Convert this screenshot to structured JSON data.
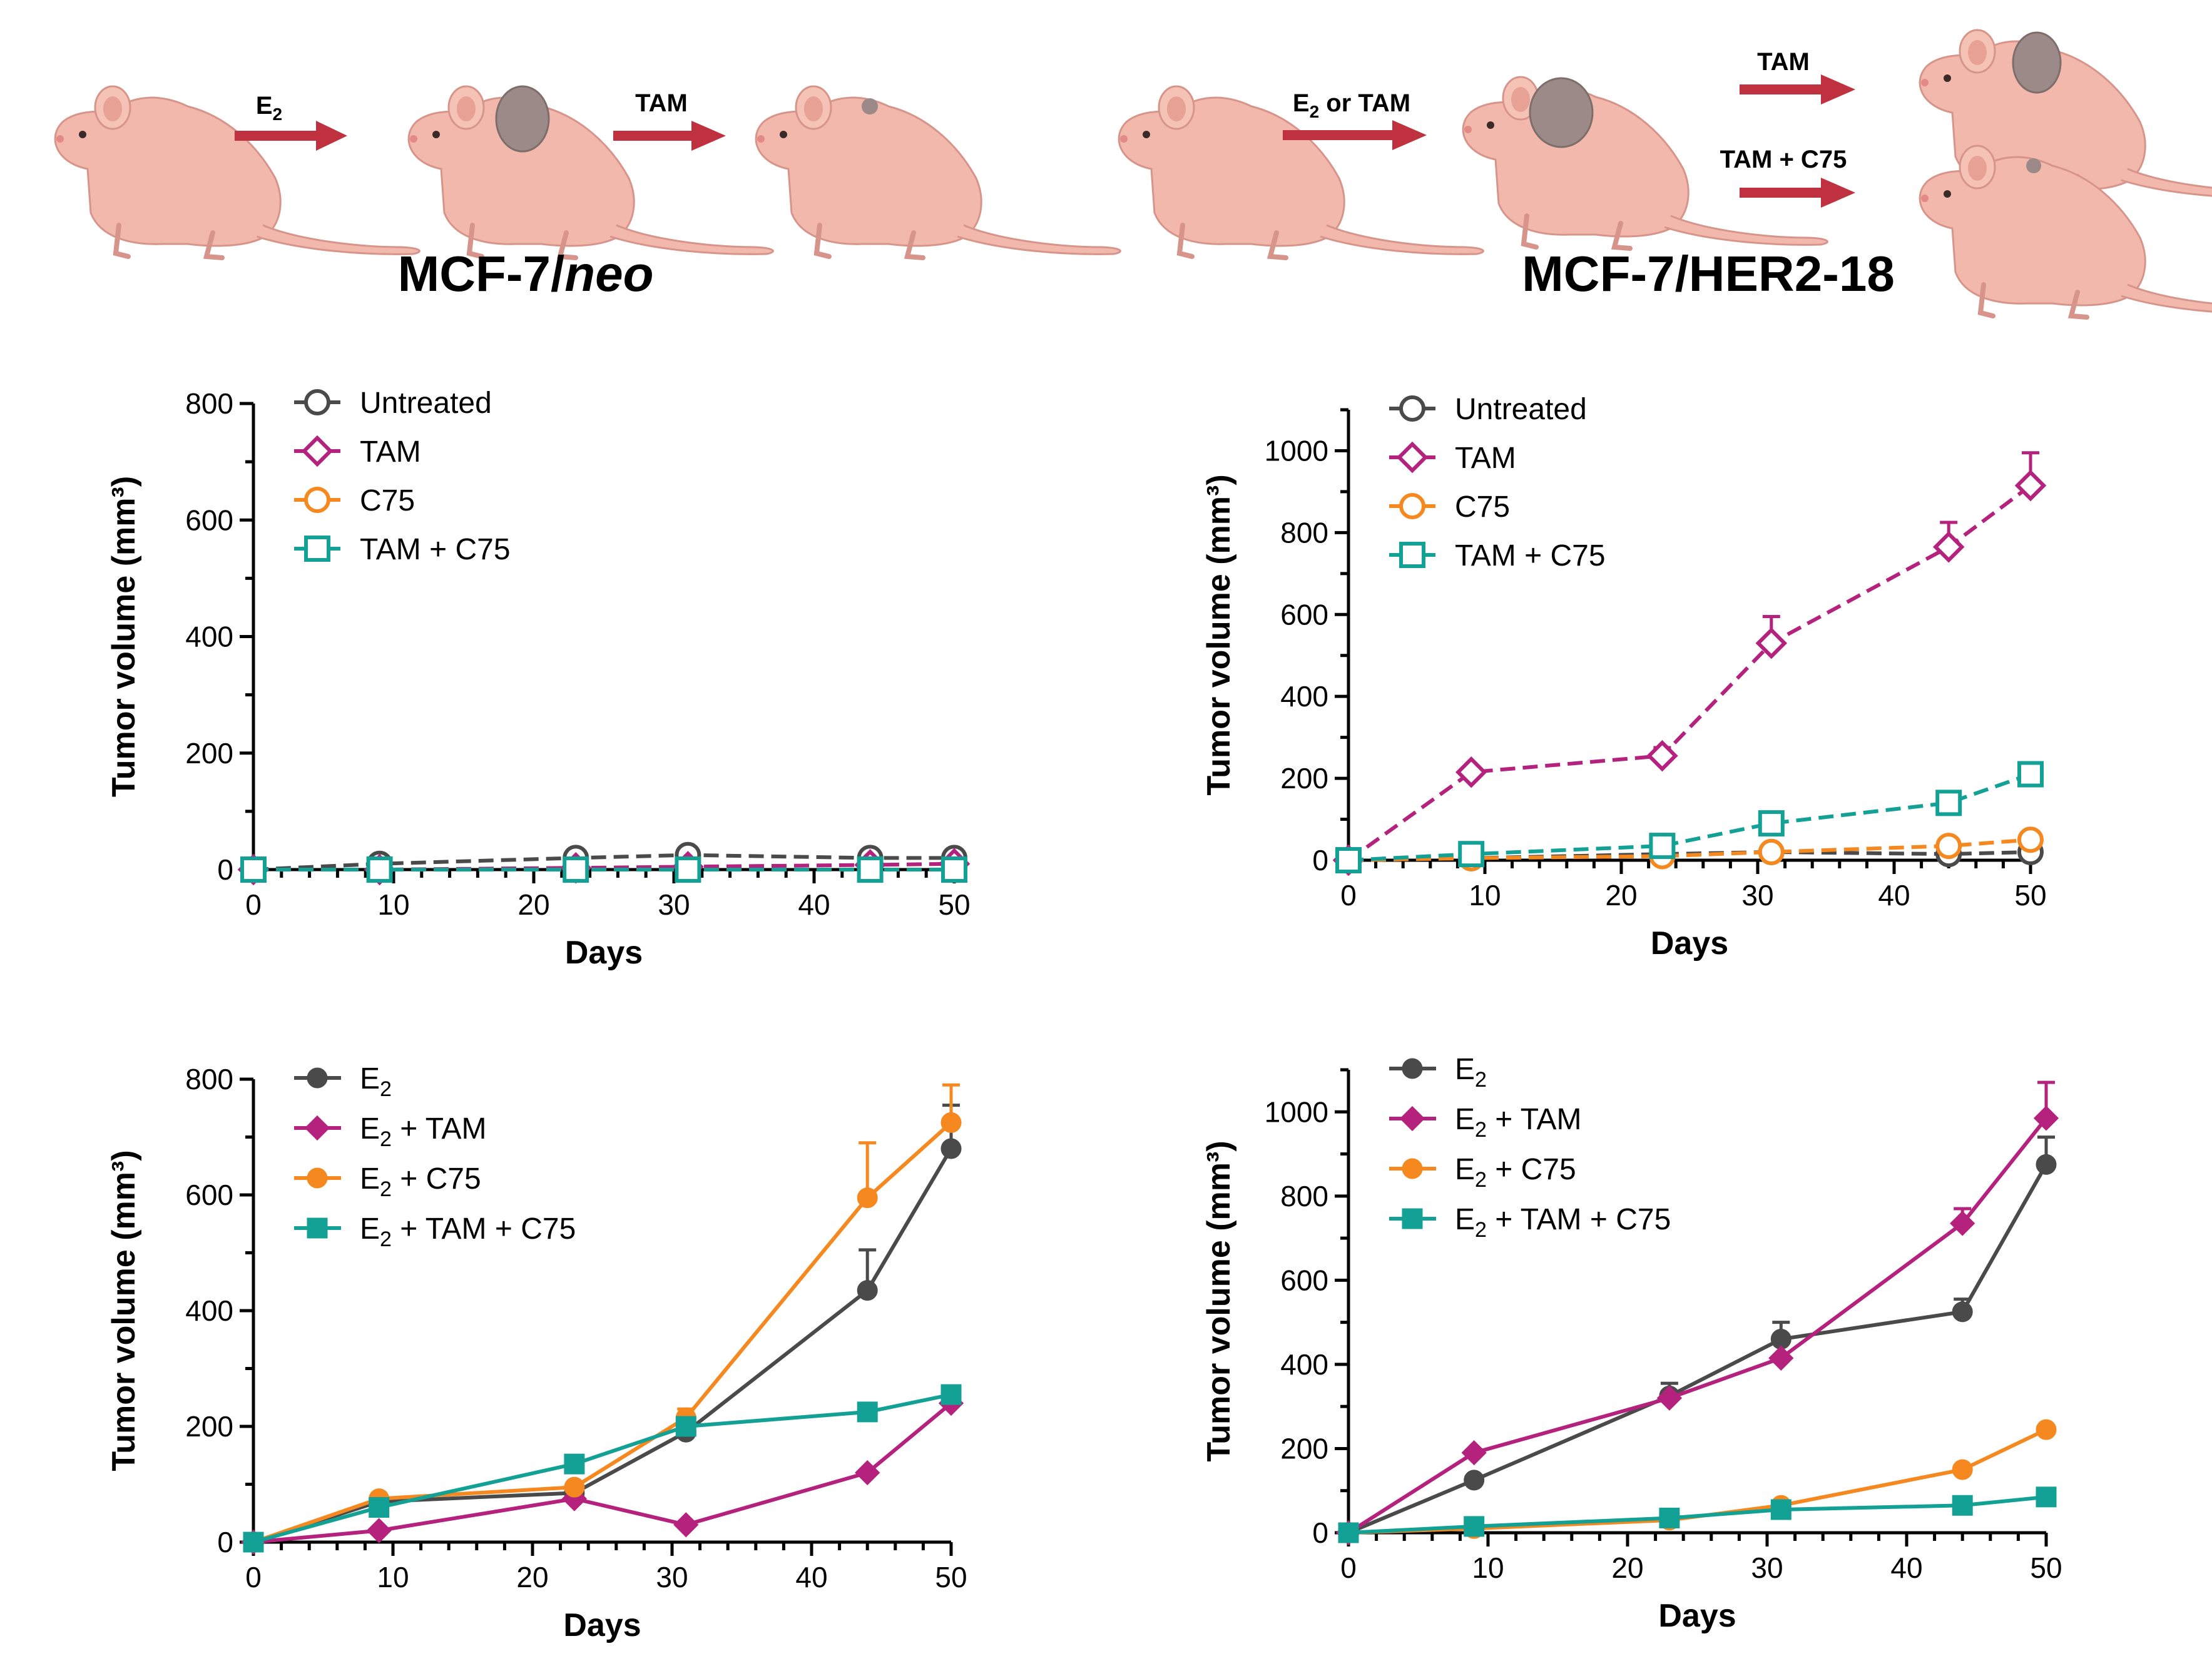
{
  "figure": {
    "left_title_main": "MCF-7/",
    "left_title_italic": "neo",
    "right_title": "MCF-7/HER2-18",
    "scheme_left": {
      "arrow1_label": "E",
      "arrow1_sub": "2",
      "arrow2_label": "TAM"
    },
    "scheme_right": {
      "arrow1_label_pre": "E",
      "arrow1_sub": "2",
      "arrow1_label_post": " or TAM",
      "arrow_top_label": "TAM",
      "arrow_bottom_label": "TAM + C75"
    }
  },
  "colors": {
    "untreated": "#4a4a4a",
    "tam": "#b5227e",
    "c75": "#f5891f",
    "tam_c75": "#14a195",
    "arrow": "#c0313f",
    "mouse": "#f2b8ac",
    "tumor": "#9b8a88"
  },
  "chart_data": [
    {
      "id": "neo_open",
      "type": "line",
      "xlabel": "Days",
      "ylabel": "Tumor volume (mm³)",
      "xlim": [
        0,
        50
      ],
      "ylim": [
        0,
        800
      ],
      "xticks": [
        "0",
        "10",
        "20",
        "30",
        "40",
        "50"
      ],
      "yticks": [
        "0",
        "200",
        "400",
        "600",
        "800"
      ],
      "x": [
        0,
        9,
        23,
        31,
        44,
        50
      ],
      "series": [
        {
          "name": "Untreated",
          "color": "#4a4a4a",
          "marker": "circle-open",
          "dash": true,
          "values": [
            0,
            10,
            20,
            25,
            20,
            20
          ],
          "err": [
            0,
            0,
            0,
            0,
            0,
            0
          ]
        },
        {
          "name": "TAM",
          "color": "#b5227e",
          "marker": "diamond-open",
          "dash": true,
          "values": [
            0,
            0,
            3,
            5,
            8,
            10
          ],
          "err": [
            0,
            0,
            0,
            0,
            0,
            0
          ]
        },
        {
          "name": "C75",
          "color": "#f5891f",
          "marker": "circle-open",
          "dash": true,
          "values": [
            0,
            0,
            0,
            0,
            0,
            0
          ],
          "err": [
            0,
            0,
            0,
            0,
            0,
            0
          ]
        },
        {
          "name": "TAM + C75",
          "color": "#14a195",
          "marker": "square-open",
          "dash": true,
          "values": [
            0,
            0,
            0,
            0,
            0,
            0
          ],
          "err": [
            0,
            0,
            0,
            0,
            0,
            0
          ]
        }
      ]
    },
    {
      "id": "her2_open",
      "type": "line",
      "xlabel": "Days",
      "ylabel": "Tumor volume (mm³)",
      "xlim": [
        0,
        50
      ],
      "ylim": [
        0,
        1100
      ],
      "xticks": [
        "0",
        "10",
        "20",
        "30",
        "40",
        "50"
      ],
      "yticks": [
        "0",
        "200",
        "400",
        "600",
        "800",
        "1000"
      ],
      "x": [
        0,
        9,
        23,
        31,
        44,
        50
      ],
      "series": [
        {
          "name": "Untreated",
          "color": "#4a4a4a",
          "marker": "circle-open",
          "dash": true,
          "values": [
            0,
            5,
            15,
            20,
            15,
            20
          ],
          "err": [
            0,
            0,
            0,
            0,
            0,
            0
          ]
        },
        {
          "name": "TAM",
          "color": "#b5227e",
          "marker": "diamond-open",
          "dash": true,
          "values": [
            0,
            215,
            255,
            530,
            765,
            915
          ],
          "err": [
            0,
            0,
            20,
            65,
            60,
            80
          ]
        },
        {
          "name": "C75",
          "color": "#f5891f",
          "marker": "circle-open",
          "dash": true,
          "values": [
            0,
            5,
            10,
            20,
            35,
            50
          ],
          "err": [
            0,
            0,
            0,
            0,
            0,
            0
          ]
        },
        {
          "name": "TAM + C75",
          "color": "#14a195",
          "marker": "square-open",
          "dash": true,
          "values": [
            0,
            15,
            35,
            90,
            140,
            210
          ],
          "err": [
            0,
            0,
            0,
            0,
            0,
            0
          ]
        }
      ]
    },
    {
      "id": "neo_filled",
      "type": "line",
      "xlabel": "Days",
      "ylabel": "Tumor volume (mm³)",
      "xlim": [
        0,
        50
      ],
      "ylim": [
        0,
        800
      ],
      "xticks": [
        "0",
        "10",
        "20",
        "30",
        "40",
        "50"
      ],
      "yticks": [
        "0",
        "200",
        "400",
        "600",
        "800"
      ],
      "x": [
        0,
        9,
        23,
        31,
        44,
        50
      ],
      "series": [
        {
          "name": "E",
          "sub": "2",
          "post": "",
          "color": "#4a4a4a",
          "marker": "circle",
          "dash": false,
          "values": [
            0,
            70,
            85,
            190,
            435,
            680
          ],
          "err": [
            0,
            0,
            0,
            0,
            70,
            75
          ]
        },
        {
          "name": "E",
          "sub": "2",
          "post": " + TAM",
          "color": "#b5227e",
          "marker": "diamond",
          "dash": false,
          "values": [
            0,
            20,
            75,
            30,
            120,
            240
          ],
          "err": [
            0,
            0,
            0,
            0,
            0,
            0
          ]
        },
        {
          "name": "E",
          "sub": "2",
          "post": " + C75",
          "color": "#f5891f",
          "marker": "circle",
          "dash": false,
          "values": [
            0,
            75,
            95,
            215,
            595,
            725
          ],
          "err": [
            0,
            0,
            0,
            15,
            95,
            65
          ]
        },
        {
          "name": "E",
          "sub": "2",
          "post": " + TAM + C75",
          "color": "#14a195",
          "marker": "square",
          "dash": false,
          "values": [
            0,
            60,
            135,
            200,
            225,
            255
          ],
          "err": [
            0,
            0,
            0,
            0,
            0,
            0
          ]
        }
      ]
    },
    {
      "id": "her2_filled",
      "type": "line",
      "xlabel": "Days",
      "ylabel": "Tumor volume (mm³)",
      "xlim": [
        0,
        50
      ],
      "ylim": [
        0,
        1100
      ],
      "xticks": [
        "0",
        "10",
        "20",
        "30",
        "40",
        "50"
      ],
      "yticks": [
        "0",
        "200",
        "400",
        "600",
        "800",
        "1000"
      ],
      "x": [
        0,
        9,
        23,
        31,
        44,
        50
      ],
      "series": [
        {
          "name": "E",
          "sub": "2",
          "post": "",
          "color": "#4a4a4a",
          "marker": "circle",
          "dash": false,
          "values": [
            0,
            125,
            325,
            460,
            525,
            875
          ],
          "err": [
            0,
            0,
            30,
            40,
            30,
            65
          ]
        },
        {
          "name": "E",
          "sub": "2",
          "post": " + TAM",
          "color": "#b5227e",
          "marker": "diamond",
          "dash": false,
          "values": [
            0,
            190,
            320,
            415,
            735,
            985
          ],
          "err": [
            0,
            0,
            0,
            0,
            35,
            85
          ]
        },
        {
          "name": "E",
          "sub": "2",
          "post": " + C75",
          "color": "#f5891f",
          "marker": "circle",
          "dash": false,
          "values": [
            0,
            10,
            30,
            65,
            150,
            245
          ],
          "err": [
            0,
            0,
            0,
            0,
            0,
            0
          ]
        },
        {
          "name": "E",
          "sub": "2",
          "post": " + TAM + C75",
          "color": "#14a195",
          "marker": "square",
          "dash": false,
          "values": [
            0,
            15,
            35,
            55,
            65,
            85
          ],
          "err": [
            0,
            0,
            0,
            0,
            0,
            0
          ]
        }
      ]
    }
  ]
}
